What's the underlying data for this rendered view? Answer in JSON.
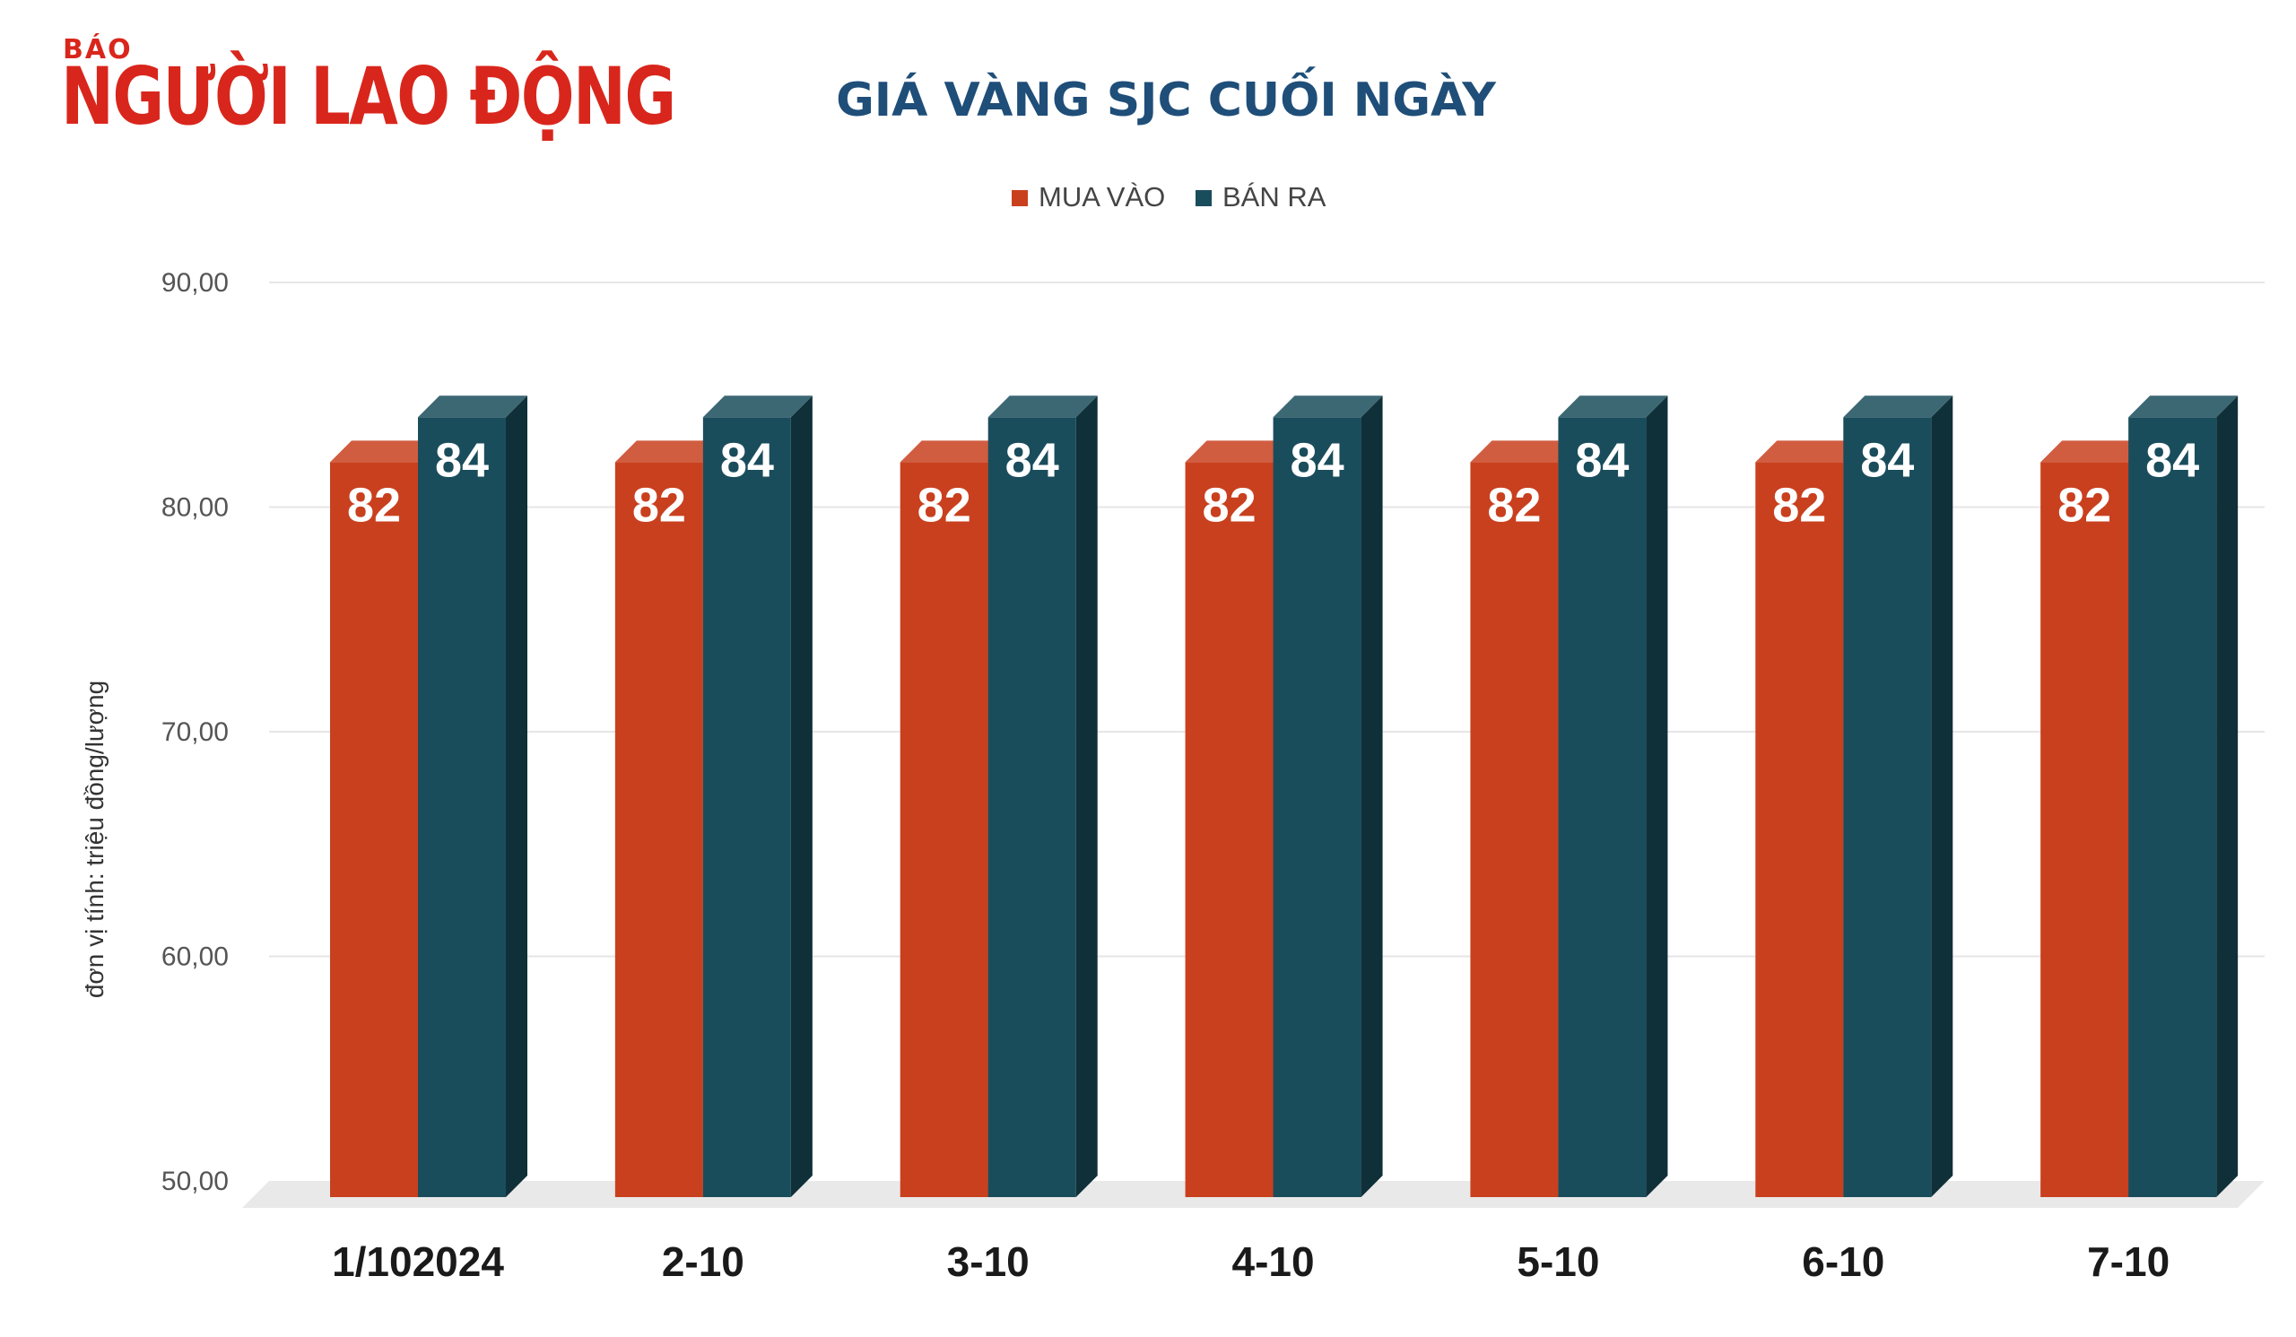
{
  "logo": {
    "small": "BÁO",
    "big": "NGƯỜI LAO ĐỘNG"
  },
  "chart_data": {
    "type": "bar",
    "title": "GIÁ VÀNG SJC CUỐI NGÀY",
    "ylabel": "đơn vị tính: triệu đồng/lượng",
    "xlabel": "",
    "categories": [
      "1/102024",
      "2-10",
      "3-10",
      "4-10",
      "5-10",
      "6-10",
      "7-10"
    ],
    "series": [
      {
        "name": "MUA VÀO",
        "values": [
          82,
          82,
          82,
          82,
          82,
          82,
          82
        ],
        "labels": [
          "82",
          "82",
          "82",
          "82",
          "82",
          "82",
          "82"
        ],
        "color": "#c9401f"
      },
      {
        "name": "BÁN RA",
        "values": [
          84,
          84,
          84,
          84,
          84,
          84,
          84
        ],
        "labels": [
          "84",
          "84",
          "84",
          "84",
          "84",
          "84",
          "84"
        ],
        "color": "#1a4d5c"
      }
    ],
    "yticks": [
      "50,00",
      "60,00",
      "70,00",
      "80,00",
      "90,00"
    ],
    "ylim": [
      50,
      90
    ],
    "grid": true,
    "legend": "top-center"
  }
}
